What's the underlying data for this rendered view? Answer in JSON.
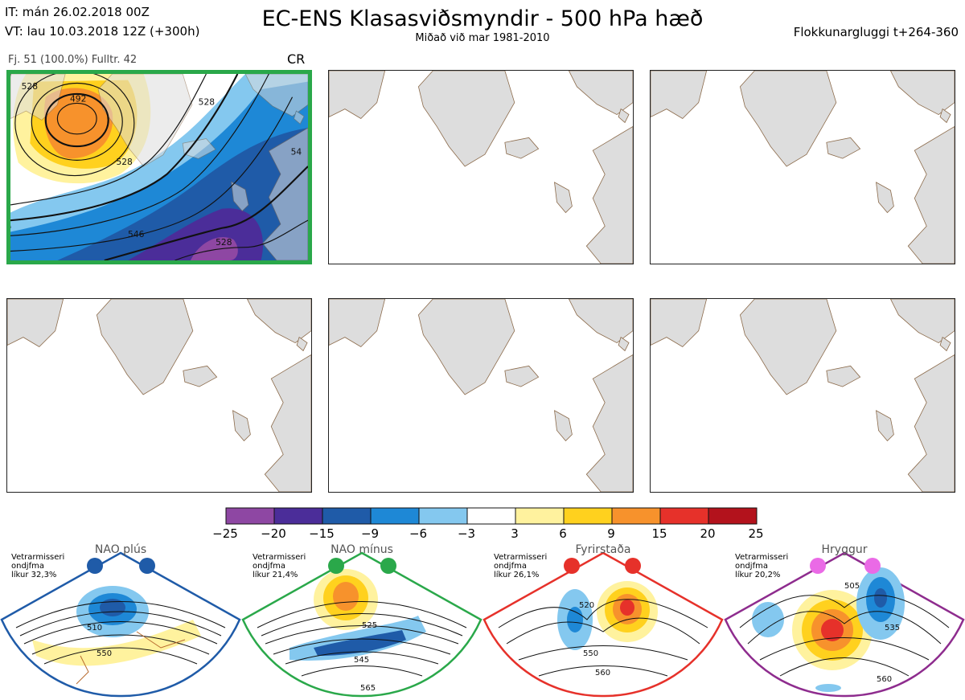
{
  "header": {
    "init_time": "IT: mán 26.02.2018 00Z",
    "valid_time": "VT: lau 10.03.2018 12Z  (+300h)",
    "title": "EC-ENS Klasasviðsmyndir - 500 hPa hæð",
    "subtitle": "Miðað við mar 1981-2010",
    "window": "Flokkunargluggi t+264-360"
  },
  "cluster": {
    "info": "Fj. 51 (100.0%)   Fulltr. 42",
    "code": "CR",
    "contour_labels": [
      "492",
      "528",
      "528",
      "546",
      "528",
      "528",
      "54"
    ]
  },
  "colorbar": {
    "ticks": [
      "−25",
      "−20",
      "−15",
      "−9",
      "−6",
      "−3",
      "3",
      "6",
      "9",
      "15",
      "20",
      "25"
    ],
    "colors": [
      "#8e47a3",
      "#4b2d99",
      "#1f5ba8",
      "#1e88d6",
      "#84c8ef",
      "#ffffff",
      "#fff29e",
      "#ffd11e",
      "#f7922c",
      "#e6312a",
      "#b3121c"
    ]
  },
  "regimes": [
    {
      "name": "NAO plús",
      "note": [
        "Vetrarmisseri",
        "ondjfma",
        "líkur 32,3%"
      ],
      "color": "#1f5ba8",
      "contour_labels": [
        "510",
        "550"
      ]
    },
    {
      "name": "NAO mínus",
      "note": [
        "Vetrarmisseri",
        "ondjfma",
        "líkur 21,4%"
      ],
      "color": "#2aa84a",
      "contour_labels": [
        "525",
        "545",
        "565"
      ]
    },
    {
      "name": "Fyrirstaða",
      "note": [
        "Vetrarmisseri",
        "ondjfma",
        "líkur 26,1%"
      ],
      "color": "#e6312a",
      "contour_labels": [
        "520",
        "550",
        "560"
      ]
    },
    {
      "name": "Hryggur",
      "note": [
        "Vetrarmisseri",
        "ondjfma",
        "líkur 20,2%"
      ],
      "color": "#8e2c8e",
      "contour_labels": [
        "505",
        "535",
        "560"
      ]
    }
  ]
}
